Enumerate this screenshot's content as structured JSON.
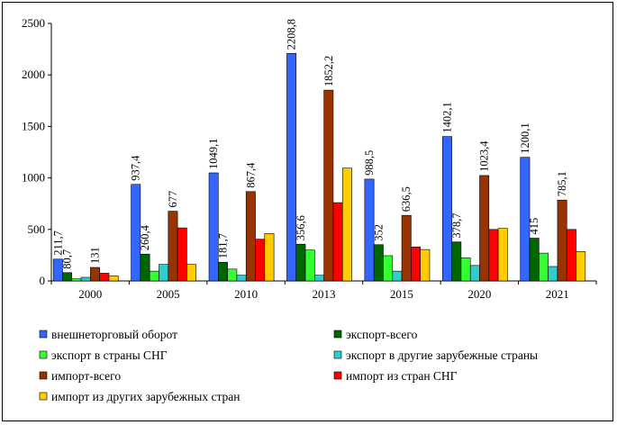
{
  "chart_data": {
    "type": "bar",
    "title": "",
    "xlabel": "",
    "ylabel": "",
    "ylim": [
      0,
      2500
    ],
    "yticks": [
      0,
      500,
      1000,
      1500,
      2000,
      2500
    ],
    "categories": [
      "2000",
      "2005",
      "2010",
      "2013",
      "2015",
      "2020",
      "2021"
    ],
    "legend_position": "bottom",
    "series": [
      {
        "name": "внешнеторговый оборот",
        "color": "#3366FF",
        "values": [
          211.7,
          937.4,
          1049.1,
          2208.8,
          988.5,
          1402.1,
          1200.1
        ],
        "labels": [
          "211,7",
          "937,4",
          "1049,1",
          "2208,8",
          "988,5",
          "1402,1",
          "1200,1"
        ]
      },
      {
        "name": "экспорт-всего",
        "color": "#006600",
        "values": [
          80.7,
          260.4,
          181.7,
          356.6,
          352,
          378.7,
          415
        ],
        "labels": [
          "80,7",
          "260,4",
          "181,7",
          "356,6",
          "352",
          "378,7",
          "415"
        ]
      },
      {
        "name": "экспорт в страны СНГ",
        "color": "#33FF33",
        "values": [
          20,
          95,
          115,
          300,
          245,
          225,
          270
        ],
        "labels": null
      },
      {
        "name": "экспорт в другие зарубежные страны",
        "color": "#33CCCC",
        "values": [
          35,
          160,
          55,
          55,
          95,
          150,
          140
        ],
        "labels": null
      },
      {
        "name": "импорт-всего",
        "color": "#993300",
        "values": [
          131,
          677,
          867.4,
          1852.2,
          636.5,
          1023.4,
          785.1
        ],
        "labels": [
          "131",
          "677",
          "867,4",
          "1852,2",
          "636,5",
          "1023,4",
          "785,1"
        ]
      },
      {
        "name": "импорт из стран СНГ",
        "color": "#FF0000",
        "values": [
          75,
          515,
          405,
          760,
          330,
          500,
          500
        ],
        "labels": null
      },
      {
        "name": "импорт из других зарубежных стран",
        "color": "#FFCC00",
        "values": [
          50,
          160,
          460,
          1095,
          305,
          510,
          285
        ],
        "labels": null
      }
    ]
  }
}
